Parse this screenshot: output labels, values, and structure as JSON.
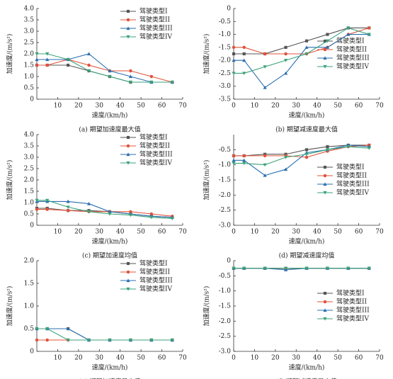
{
  "chart_data": [
    {
      "type": "line",
      "caption": "(a) 期望加速度最大值",
      "x_label": "速度/(km/h)",
      "y_label": "加速度/(m/s²)",
      "x": [
        0,
        5,
        15,
        25,
        35,
        45,
        55,
        65
      ],
      "xlim": [
        0,
        70
      ],
      "xticks": [
        10,
        20,
        30,
        40,
        50,
        60,
        70
      ],
      "ylim": [
        0,
        4
      ],
      "yticks": [
        0,
        0.5,
        {
          "value": 1,
          "label": "1.0"
        },
        1.5,
        {
          "value": 2,
          "label": "2.0"
        },
        2.5,
        {
          "value": 3,
          "label": "3.0"
        },
        3.5,
        {
          "value": 4,
          "label": "4.0"
        }
      ],
      "legend": "upper right",
      "series": [
        {
          "name": "驾驶类型I",
          "color": "#555555",
          "marker": "square",
          "values": [
            1.5,
            1.5,
            1.5,
            1.25,
            1.0,
            0.75,
            0.75,
            0.75
          ]
        },
        {
          "name": "驾驶类型II",
          "color": "#e0533b",
          "marker": "circle",
          "values": [
            1.5,
            1.5,
            1.75,
            1.5,
            1.25,
            1.25,
            1.0,
            0.75
          ]
        },
        {
          "name": "驾驶类型III",
          "color": "#2a6fb0",
          "marker": "triangle-up",
          "values": [
            1.75,
            1.75,
            1.75,
            2.0,
            1.25,
            1.0,
            0.75,
            0.75
          ]
        },
        {
          "name": "驾驶类型IV",
          "color": "#3aa37a",
          "marker": "triangle-down",
          "values": [
            2.0,
            2.0,
            1.75,
            1.25,
            1.0,
            0.75,
            0.75,
            0.75
          ]
        }
      ]
    },
    {
      "type": "line",
      "caption": "(b) 期望减速度最大值",
      "x_label": "速度/(km/h)",
      "y_label": "加速度/(m/s²)",
      "x": [
        0,
        5,
        15,
        25,
        35,
        45,
        55,
        65
      ],
      "xlim": [
        0,
        70
      ],
      "xticks": [
        0,
        10,
        20,
        30,
        40,
        50,
        60,
        70
      ],
      "ylim": [
        -3.5,
        0
      ],
      "yticks": [
        -3.5,
        {
          "value": -3,
          "label": "-3.0"
        },
        -2.5,
        {
          "value": -2,
          "label": "-2.0"
        },
        -1.5,
        {
          "value": -1,
          "label": "-1.0"
        },
        -0.5,
        0
      ],
      "legend": "center right",
      "series": [
        {
          "name": "驾驶类型I",
          "color": "#555555",
          "marker": "square",
          "values": [
            -1.75,
            -1.75,
            -1.75,
            -1.5,
            -1.25,
            -1.0,
            -0.75,
            -0.75
          ]
        },
        {
          "name": "驾驶类型II",
          "color": "#e0533b",
          "marker": "circle",
          "values": [
            -1.5,
            -1.5,
            -1.75,
            -1.75,
            -1.75,
            -1.5,
            -1.0,
            -0.75
          ]
        },
        {
          "name": "驾驶类型III",
          "color": "#2a6fb0",
          "marker": "triangle-up",
          "values": [
            -2.0,
            -2.0,
            -3.05,
            -2.5,
            -1.5,
            -1.5,
            -1.0,
            -1.0
          ]
        },
        {
          "name": "驾驶类型IV",
          "color": "#3aa37a",
          "marker": "triangle-down",
          "values": [
            -2.5,
            -2.5,
            -2.25,
            -2.0,
            -1.75,
            -1.25,
            -0.75,
            -1.0
          ]
        }
      ]
    },
    {
      "type": "line",
      "caption": "(c) 期望加速度均值",
      "x_label": "速度/(km/h)",
      "y_label": "加速度/(m/s²)",
      "x": [
        0,
        5,
        15,
        25,
        35,
        45,
        55,
        65
      ],
      "xlim": [
        0,
        70
      ],
      "xticks": [
        10,
        20,
        30,
        40,
        50,
        60,
        70
      ],
      "ylim": [
        0,
        4
      ],
      "yticks": [
        0,
        0.5,
        {
          "value": 1,
          "label": "1.0"
        },
        1.5,
        {
          "value": 2,
          "label": "2.0"
        },
        2.5,
        {
          "value": 3,
          "label": "3.0"
        },
        3.5,
        {
          "value": 4,
          "label": "4.0"
        }
      ],
      "legend": "upper right",
      "series": [
        {
          "name": "驾驶类型I",
          "color": "#555555",
          "marker": "square",
          "values": [
            0.75,
            0.75,
            0.65,
            0.65,
            0.6,
            0.5,
            0.4,
            0.35
          ]
        },
        {
          "name": "驾驶类型II",
          "color": "#e0533b",
          "marker": "circle",
          "values": [
            0.7,
            0.7,
            0.65,
            0.6,
            0.6,
            0.6,
            0.5,
            0.4
          ]
        },
        {
          "name": "驾驶类型III",
          "color": "#2a6fb0",
          "marker": "triangle-up",
          "values": [
            1.05,
            1.05,
            1.05,
            0.95,
            0.6,
            0.5,
            0.4,
            0.35
          ]
        },
        {
          "name": "驾驶类型IV",
          "color": "#3aa37a",
          "marker": "triangle-down",
          "values": [
            1.1,
            1.1,
            0.8,
            0.6,
            0.5,
            0.45,
            0.35,
            0.3
          ]
        }
      ]
    },
    {
      "type": "line",
      "caption": "(d) 期望减速度均值",
      "x_label": "速度/(km/h)",
      "y_label": "加速度/(m/s²)",
      "x": [
        0,
        5,
        15,
        25,
        35,
        45,
        55,
        65
      ],
      "xlim": [
        0,
        70
      ],
      "xticks": [
        0,
        10,
        20,
        30,
        40,
        50,
        60,
        70
      ],
      "ylim": [
        -3,
        0
      ],
      "yticks": [
        {
          "value": -3,
          "label": "-3.0"
        },
        -2.5,
        {
          "value": -2,
          "label": "-2.0"
        },
        -1.5,
        {
          "value": -1,
          "label": "-1.0"
        },
        -0.5
      ],
      "legend": "center right",
      "series": [
        {
          "name": "驾驶类型I",
          "color": "#555555",
          "marker": "square",
          "values": [
            -0.7,
            -0.7,
            -0.65,
            -0.65,
            -0.5,
            -0.4,
            -0.35,
            -0.35
          ]
        },
        {
          "name": "驾驶类型II",
          "color": "#e0533b",
          "marker": "circle",
          "values": [
            -0.7,
            -0.7,
            -0.7,
            -0.7,
            -0.75,
            -0.55,
            -0.4,
            -0.35
          ]
        },
        {
          "name": "驾驶类型III",
          "color": "#2a6fb0",
          "marker": "triangle-up",
          "values": [
            -0.85,
            -0.85,
            -1.35,
            -1.15,
            -0.6,
            -0.5,
            -0.35,
            -0.4
          ]
        },
        {
          "name": "驾驶类型IV",
          "color": "#3aa37a",
          "marker": "triangle-down",
          "values": [
            -0.95,
            -0.95,
            -1.0,
            -0.75,
            -0.65,
            -0.5,
            -0.4,
            -0.45
          ]
        }
      ]
    },
    {
      "type": "line",
      "caption": "(e) 期望加速度最小值",
      "x_label": "速度/(km/h)",
      "y_label": "加速度/(m/s²)",
      "x": [
        0,
        5,
        15,
        25,
        35,
        45,
        55,
        65
      ],
      "xlim": [
        0,
        70
      ],
      "xticks": [
        10,
        20,
        30,
        40,
        50,
        60,
        70
      ],
      "ylim": [
        0,
        2
      ],
      "yticks": [
        0,
        0.5,
        {
          "value": 1,
          "label": "1.0"
        },
        1.5,
        {
          "value": 2,
          "label": "2.0"
        }
      ],
      "legend": "upper right",
      "series": [
        {
          "name": "驾驶类型I",
          "color": "#555555",
          "marker": "square",
          "values": [
            0.5,
            0.5,
            0.5,
            0.25,
            0.25,
            0.25,
            0.25,
            0.25
          ]
        },
        {
          "name": "驾驶类型II",
          "color": "#e0533b",
          "marker": "circle",
          "values": [
            0.25,
            0.25,
            0.25,
            0.25,
            0.25,
            0.25,
            0.25,
            0.25
          ]
        },
        {
          "name": "驾驶类型III",
          "color": "#2a6fb0",
          "marker": "triangle-up",
          "values": [
            0.5,
            0.5,
            0.5,
            0.25,
            0.25,
            0.25,
            0.25,
            0.25
          ]
        },
        {
          "name": "驾驶类型IV",
          "color": "#3aa37a",
          "marker": "triangle-down",
          "values": [
            0.5,
            0.5,
            0.25,
            0.25,
            0.25,
            0.25,
            0.25,
            0.25
          ]
        }
      ]
    },
    {
      "type": "line",
      "caption": "(f) 期望减速度最小值",
      "x_label": "速度/(km/h)",
      "y_label": "加速度/(m/s²)",
      "x": [
        0,
        5,
        15,
        25,
        35,
        45,
        55,
        65
      ],
      "xlim": [
        0,
        70
      ],
      "xticks": [
        0,
        10,
        20,
        30,
        40,
        50,
        60,
        70
      ],
      "ylim": [
        -3,
        0
      ],
      "yticks": [
        {
          "value": -3,
          "label": "-3.0"
        },
        -2.5,
        {
          "value": -2,
          "label": "-2.0"
        },
        -1.5,
        {
          "value": -1,
          "label": "-1.0"
        },
        -0.5,
        0
      ],
      "legend": "center right",
      "series": [
        {
          "name": "驾驶类型I",
          "color": "#555555",
          "marker": "square",
          "values": [
            -0.25,
            -0.25,
            -0.25,
            -0.25,
            -0.25,
            -0.25,
            -0.25,
            -0.25
          ]
        },
        {
          "name": "驾驶类型II",
          "color": "#e0533b",
          "marker": "circle",
          "values": [
            -0.25,
            -0.25,
            -0.25,
            -0.25,
            -0.25,
            -0.25,
            -0.25,
            -0.25
          ]
        },
        {
          "name": "驾驶类型III",
          "color": "#2a6fb0",
          "marker": "triangle-up",
          "values": [
            -0.25,
            -0.25,
            -0.25,
            -0.3,
            -0.25,
            -0.25,
            -0.25,
            -0.25
          ]
        },
        {
          "name": "驾驶类型IV",
          "color": "#3aa37a",
          "marker": "triangle-down",
          "values": [
            -0.25,
            -0.25,
            -0.25,
            -0.25,
            -0.25,
            -0.25,
            -0.25,
            -0.25
          ]
        }
      ]
    }
  ]
}
